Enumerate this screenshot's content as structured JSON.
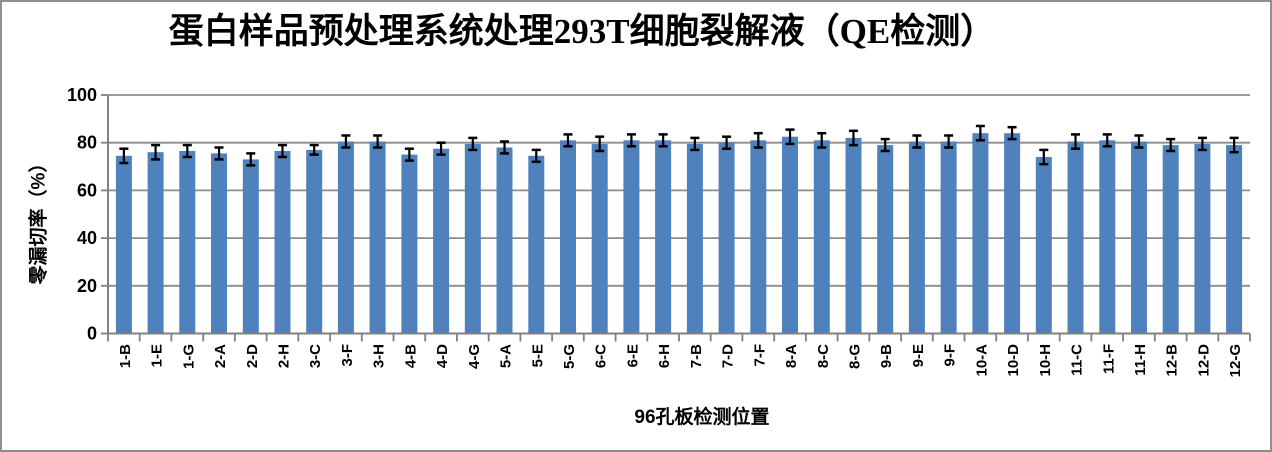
{
  "window": {
    "background": "#ffffff",
    "border_color": "#8e8e8e"
  },
  "chart_data": {
    "type": "bar",
    "title": "蛋白样品预处理系统处理293T细胞裂解液（QE检测）",
    "xlabel": "96孔板检测位置",
    "ylabel": "零漏切率（%）",
    "ylim": [
      0,
      100
    ],
    "yticks": [
      0,
      20,
      40,
      60,
      80,
      100
    ],
    "grid": true,
    "legend": "none",
    "error_bars": true,
    "categories": [
      "1-B",
      "1-E",
      "1-G",
      "2-A",
      "2-D",
      "2-H",
      "3-C",
      "3-F",
      "3-H",
      "4-B",
      "4-D",
      "4-G",
      "5-A",
      "5-E",
      "5-G",
      "6-C",
      "6-E",
      "6-H",
      "7-B",
      "7-D",
      "7-F",
      "8-A",
      "8-C",
      "8-G",
      "9-B",
      "9-E",
      "9-F",
      "10-A",
      "10-D",
      "10-H",
      "11-C",
      "11-F",
      "11-H",
      "12-B",
      "12-D",
      "12-G"
    ],
    "values": [
      74.5,
      76,
      76.5,
      75.5,
      73,
      76.5,
      77,
      80.5,
      80.5,
      75,
      77.5,
      79.5,
      78,
      74.5,
      81,
      79.5,
      81,
      81,
      79.5,
      80,
      81,
      82.5,
      81,
      82,
      79,
      80.5,
      80.5,
      84,
      84,
      74,
      80.5,
      81,
      80.5,
      79,
      79.5,
      79
    ],
    "errors": [
      3,
      3,
      2.5,
      2.5,
      2.5,
      2.5,
      2,
      2.5,
      2.5,
      2.5,
      2.5,
      2.5,
      2.5,
      2.5,
      2.5,
      3,
      2.5,
      2.5,
      2.5,
      2.5,
      3,
      3,
      3,
      3,
      2.5,
      2.5,
      2.5,
      3,
      2.5,
      3,
      3,
      2.5,
      2.5,
      2.5,
      2.5,
      3
    ],
    "colors": {
      "bar": "#4F81BD",
      "error_bar": "#000000",
      "axis": "#808080",
      "gridline": "#8c8c8c",
      "text": "#000000"
    }
  }
}
